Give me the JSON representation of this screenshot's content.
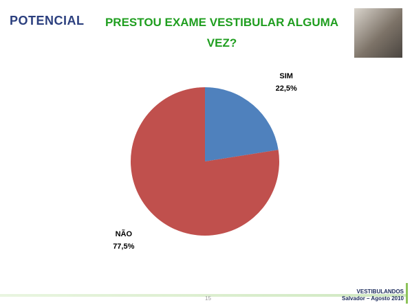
{
  "slide": {
    "logo": "POTENCIAL",
    "page_number": "15",
    "footer_title": "VESTIBULANDOS",
    "footer_subtitle": "Salvador – Agosto 2010"
  },
  "chart_data": {
    "type": "pie",
    "title": "PRESTOU EXAME VESTIBULAR ALGUMA VEZ?",
    "categories": [
      "SIM",
      "NÃO"
    ],
    "values": [
      22.5,
      77.5
    ],
    "value_labels": [
      "22,5%",
      "77,5%"
    ],
    "colors": [
      "#4f81bd",
      "#c0504d"
    ]
  }
}
